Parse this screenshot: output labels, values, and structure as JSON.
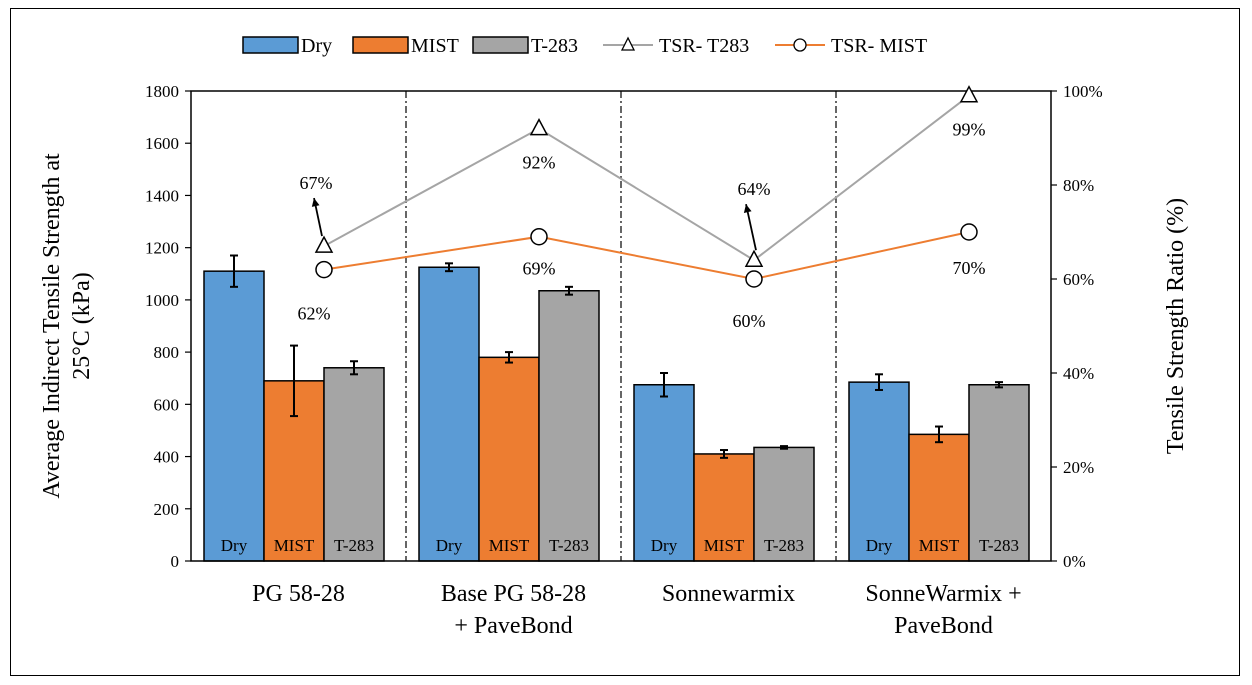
{
  "chart_data": {
    "type": "bar",
    "categories": [
      [
        "PG 58-28"
      ],
      [
        "Base PG 58-28",
        "+ PaveBond"
      ],
      [
        "Sonnewarmix"
      ],
      [
        "SonneWarmix +",
        "PaveBond"
      ]
    ],
    "series": [
      {
        "name": "Dry",
        "color": "#5b9bd5",
        "values": [
          1110,
          1125,
          675,
          685
        ],
        "errors": [
          60,
          15,
          45,
          30
        ]
      },
      {
        "name": "MIST",
        "color": "#ed7d31",
        "values": [
          690,
          780,
          410,
          485
        ],
        "errors": [
          135,
          20,
          15,
          30
        ]
      },
      {
        "name": "T-283",
        "color": "#a5a5a5",
        "values": [
          740,
          1035,
          435,
          675
        ],
        "errors": [
          25,
          15,
          5,
          10
        ]
      }
    ],
    "bar_labels": [
      "Dry",
      "MIST",
      "T-283"
    ],
    "lines": [
      {
        "name": "TSR- T283",
        "color": "#a5a5a5",
        "marker": "triangle",
        "values": [
          67,
          92,
          64,
          99
        ],
        "labels": [
          "67%",
          "92%",
          "64%",
          "99%"
        ]
      },
      {
        "name": "TSR- MIST",
        "color": "#ed7d31",
        "marker": "circle",
        "values": [
          62,
          69,
          60,
          70
        ],
        "labels": [
          "62%",
          "69%",
          "60%",
          "70%"
        ]
      }
    ],
    "ylabel": [
      "Average Indirect Tensile Strength at",
      "25°C (kPa)"
    ],
    "y2label": "Tensile Strength Ratio (%)",
    "ylim": [
      0,
      1800
    ],
    "y2lim": [
      0,
      100
    ],
    "yticks": [
      "0",
      "200",
      "400",
      "600",
      "800",
      "1000",
      "1200",
      "1400",
      "1600",
      "1800"
    ],
    "y2ticks": [
      "0%",
      "20%",
      "40%",
      "60%",
      "80%",
      "100%"
    ],
    "legend_position": "top",
    "grid": false
  }
}
